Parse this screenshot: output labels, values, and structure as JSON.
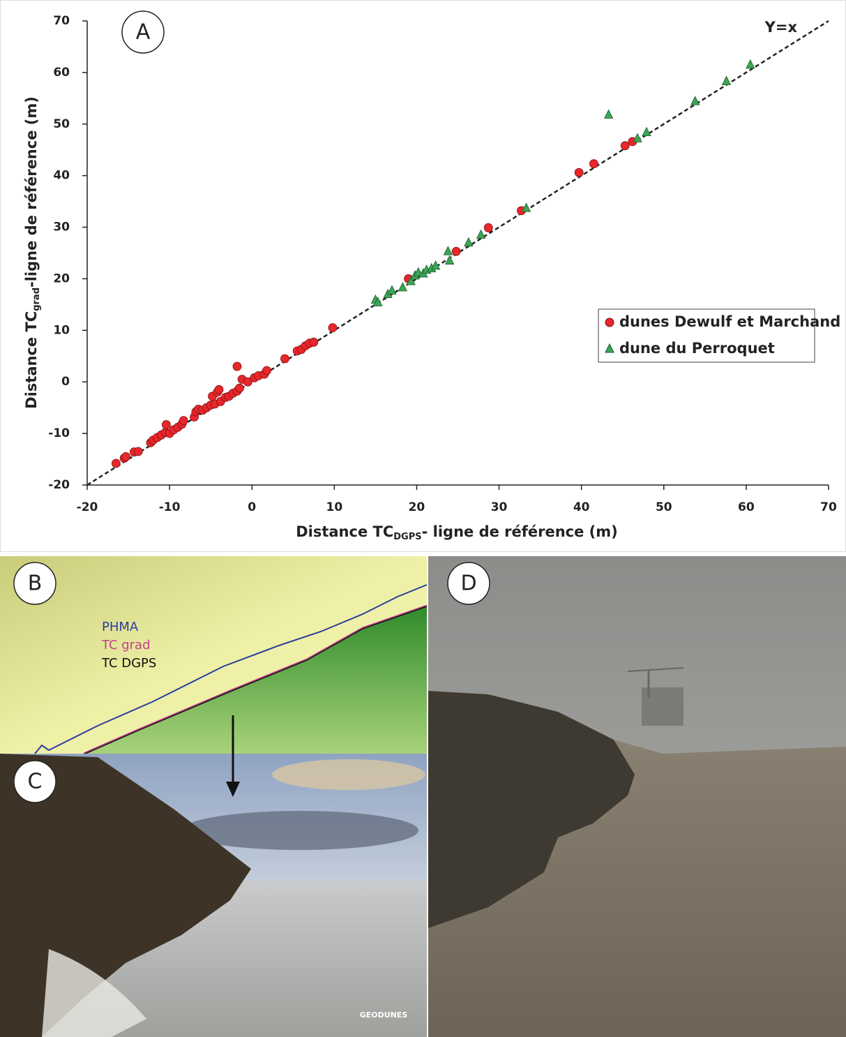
{
  "chart_data": {
    "type": "scatter",
    "x_label": {
      "main": "Distance TC",
      "sub": "DGPS",
      "rest": "- ligne de référence (m)"
    },
    "y_label": {
      "main": "Distance TC",
      "sub": "grad",
      "rest": "-ligne de référence (m)"
    },
    "xlim": [
      -20,
      70
    ],
    "ylim": [
      -20,
      70
    ],
    "xticks": [
      -20,
      -10,
      0,
      10,
      20,
      30,
      40,
      50,
      60,
      70
    ],
    "yticks": [
      -20,
      -10,
      0,
      10,
      20,
      30,
      40,
      50,
      60,
      70
    ],
    "reference_line": {
      "label": "Y=x",
      "x": [
        -20,
        70
      ],
      "y": [
        -20,
        70
      ]
    },
    "series": [
      {
        "name": "dunes Dewulf et Marchand",
        "color": "#e8262b",
        "marker": "circle",
        "x": [
          -16.5,
          -15.5,
          -15.3,
          -14.3,
          -13.8,
          -12.3,
          -12.0,
          -11.5,
          -11.0,
          -10.5,
          -10.4,
          -10.0,
          -9.5,
          -9.0,
          -8.5,
          -8.3,
          -7.0,
          -6.8,
          -6.5,
          -6.0,
          -5.5,
          -5.0,
          -4.8,
          -4.5,
          -4.2,
          -4.0,
          -3.8,
          -3.2,
          -2.8,
          -2.3,
          -1.8,
          -1.5,
          -1.8,
          -1.2,
          -0.5,
          0.3,
          0.8,
          1.5,
          1.8,
          4.0,
          5.5,
          6.0,
          6.5,
          7.0,
          7.5,
          9.8,
          19.0,
          24.8,
          28.7,
          32.7,
          39.7,
          41.5,
          45.3,
          46.2
        ],
        "values": [
          -15.8,
          -14.8,
          -14.5,
          -13.6,
          -13.5,
          -11.8,
          -11.3,
          -10.8,
          -10.3,
          -9.8,
          -8.3,
          -10.0,
          -9.3,
          -8.8,
          -8.2,
          -7.5,
          -6.8,
          -5.8,
          -5.3,
          -5.5,
          -5.0,
          -4.5,
          -2.8,
          -4.3,
          -2.0,
          -1.5,
          -3.8,
          -3.0,
          -2.8,
          -2.2,
          -1.8,
          -1.2,
          3.0,
          0.5,
          0.0,
          0.8,
          1.2,
          1.5,
          2.2,
          4.5,
          6.0,
          6.3,
          7.0,
          7.5,
          7.7,
          10.5,
          20.0,
          25.3,
          29.9,
          33.2,
          40.6,
          42.3,
          45.8,
          46.6
        ]
      },
      {
        "name": "dune du Perroquet",
        "color": "#3aa655",
        "marker": "triangle",
        "x": [
          15.0,
          15.3,
          16.5,
          17.0,
          18.3,
          19.3,
          19.8,
          20.2,
          20.8,
          21.2,
          21.8,
          22.3,
          24.0,
          23.8,
          26.3,
          27.8,
          33.3,
          43.3,
          46.8,
          47.9,
          53.8,
          57.6,
          60.5
        ],
        "values": [
          15.9,
          15.4,
          17.0,
          17.7,
          18.3,
          19.5,
          20.6,
          21.2,
          21.0,
          21.7,
          22.0,
          22.5,
          23.5,
          25.3,
          27.0,
          28.5,
          33.7,
          51.8,
          47.2,
          48.4,
          54.4,
          58.3,
          61.5
        ]
      }
    ]
  },
  "panels": [
    {
      "label": "A"
    },
    {
      "label": "B"
    },
    {
      "label": "C"
    },
    {
      "label": "D"
    }
  ],
  "map_legend": [
    "PHMA",
    "TC grad",
    "TC DGPS"
  ],
  "watermark": "GEODUNES"
}
